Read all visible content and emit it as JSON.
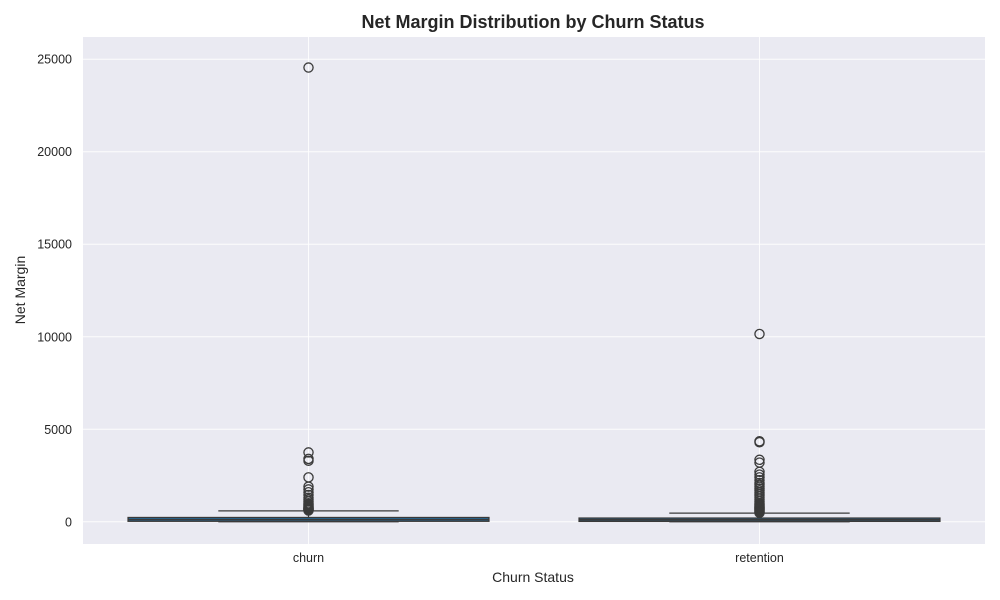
{
  "chart_data": {
    "type": "box",
    "title": "Net Margin Distribution by Churn Status",
    "xlabel": "Churn Status",
    "ylabel": "Net Margin",
    "ylim": [
      -1200,
      26200
    ],
    "yticks": [
      0,
      5000,
      10000,
      15000,
      20000,
      25000
    ],
    "grid": true,
    "categories": [
      "churn",
      "retention"
    ],
    "box_color": "#1f77b4",
    "boxes": [
      {
        "category": "churn",
        "whisker_low": 0,
        "q1": 30,
        "median": 120,
        "q3": 230,
        "whisker_high": 590,
        "fliers": [
          24550,
          3750,
          3400,
          3300,
          2400,
          1900,
          1750,
          1600,
          1450,
          1300,
          1200,
          1100,
          1000,
          950,
          900,
          850,
          800,
          760,
          720,
          690,
          660,
          630,
          610
        ]
      },
      {
        "category": "retention",
        "whisker_low": 0,
        "q1": 25,
        "median": 110,
        "q3": 200,
        "whisker_high": 470,
        "fliers": [
          10150,
          4350,
          4300,
          3350,
          3200,
          2700,
          2550,
          2400,
          2250,
          2100,
          2000,
          1900,
          1800,
          1700,
          1600,
          1500,
          1400,
          1300,
          1200,
          1100,
          1000,
          950,
          900,
          850,
          800,
          750,
          700,
          650,
          600,
          560,
          520,
          490
        ]
      }
    ]
  }
}
